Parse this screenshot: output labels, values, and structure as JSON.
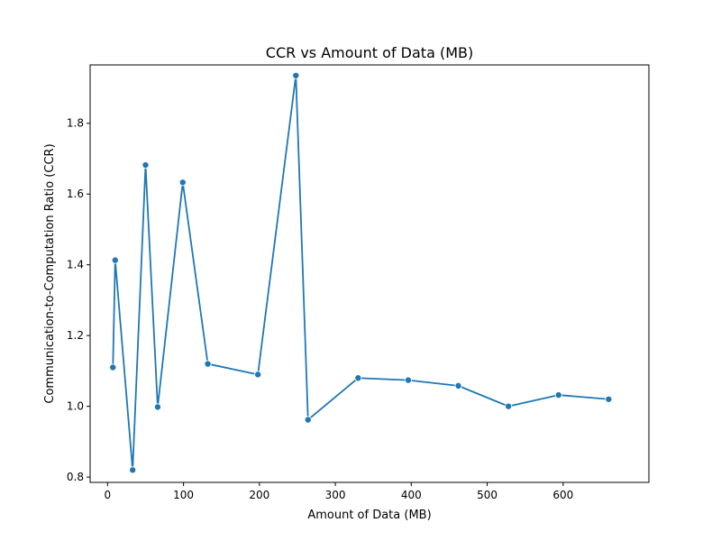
{
  "chart_data": {
    "type": "line",
    "title": "CCR vs Amount of Data (MB)",
    "xlabel": "Amount of Data (MB)",
    "ylabel": "Communication-to-Computation Ratio (CCR)",
    "xlim": [
      -23,
      713
    ],
    "ylim": [
      0.785,
      1.965
    ],
    "xticks": [
      0,
      100,
      200,
      300,
      400,
      500,
      600
    ],
    "yticks": [
      0.8,
      1.0,
      1.2,
      1.4,
      1.6,
      1.8
    ],
    "grid": false,
    "color": "#1f77b4",
    "series": [
      {
        "x": [
          7,
          10,
          33,
          50,
          66,
          99,
          132,
          198,
          248,
          264,
          330,
          396,
          462,
          528,
          594,
          660
        ],
        "y": [
          1.11,
          1.413,
          0.82,
          1.682,
          0.998,
          1.633,
          1.12,
          1.09,
          1.935,
          0.962,
          1.08,
          1.074,
          1.058,
          1.0,
          1.032,
          1.02
        ]
      }
    ]
  }
}
